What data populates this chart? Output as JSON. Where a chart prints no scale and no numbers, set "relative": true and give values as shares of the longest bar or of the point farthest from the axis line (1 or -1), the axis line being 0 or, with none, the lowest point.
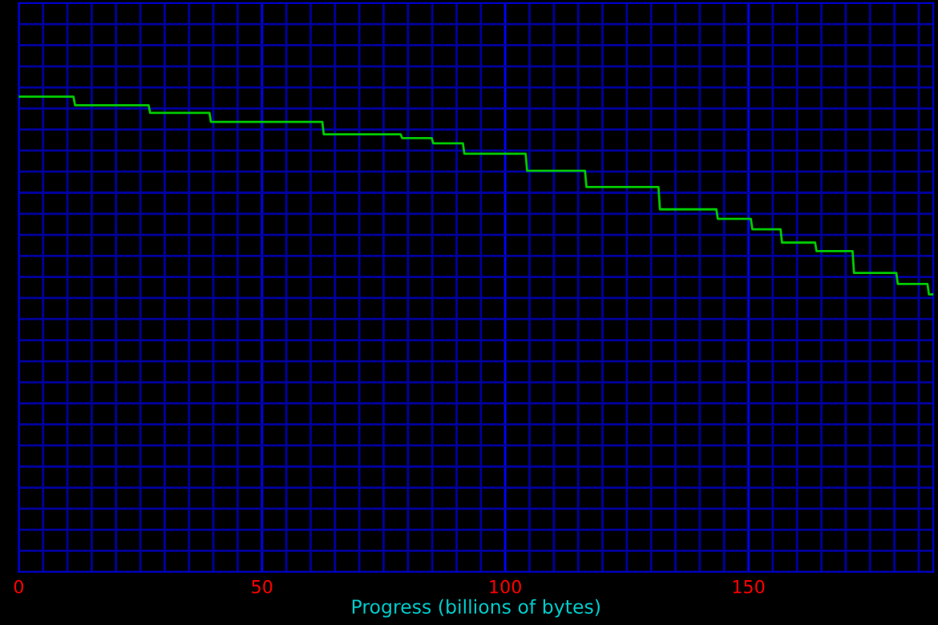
{
  "chart_data": {
    "type": "line",
    "xlabel": "Progress (billions of bytes)",
    "relative": true,
    "xlim": [
      0,
      188
    ],
    "xticks": [
      0,
      {
        "value": 5,
        "label": null
      },
      {
        "value": 10,
        "label": null
      },
      {
        "value": 15,
        "label": null
      },
      {
        "value": 20,
        "label": null
      },
      {
        "value": 25,
        "label": null
      },
      {
        "value": 30,
        "label": null
      },
      {
        "value": 35,
        "label": null
      },
      {
        "value": 40,
        "label": null
      },
      {
        "value": 45,
        "label": null
      },
      50,
      {
        "value": 55,
        "label": null
      },
      {
        "value": 60,
        "label": null
      },
      {
        "value": 65,
        "label": null
      },
      {
        "value": 70,
        "label": null
      },
      {
        "value": 75,
        "label": null
      },
      {
        "value": 80,
        "label": null
      },
      {
        "value": 85,
        "label": null
      },
      {
        "value": 90,
        "label": null
      },
      {
        "value": 95,
        "label": null
      },
      100,
      {
        "value": 105,
        "label": null
      },
      {
        "value": 110,
        "label": null
      },
      {
        "value": 115,
        "label": null
      },
      {
        "value": 120,
        "label": null
      },
      {
        "value": 125,
        "label": null
      },
      {
        "value": 130,
        "label": null
      },
      {
        "value": 135,
        "label": null
      },
      {
        "value": 140,
        "label": null
      },
      {
        "value": 145,
        "label": null
      },
      150,
      {
        "value": 155,
        "label": null
      },
      {
        "value": 160,
        "label": null
      },
      {
        "value": 165,
        "label": null
      },
      {
        "value": 170,
        "label": null
      },
      {
        "value": 175,
        "label": null
      },
      {
        "value": 180,
        "label": null
      },
      {
        "value": 185,
        "label": null
      }
    ],
    "grid": true,
    "tick_labels": "x",
    "line_style": "solid",
    "marker": "none",
    "series": [
      {
        "color": "#00cc00",
        "x": [
          0,
          11.25,
          11.58,
          26.7,
          27.0,
          39.2,
          39.5,
          62.4,
          62.7,
          78.5,
          78.8,
          84.9,
          85.2,
          91.3,
          91.6,
          104.2,
          104.5,
          116.4,
          116.7,
          131.5,
          131.8,
          143.4,
          143.7,
          150.5,
          150.8,
          156.6,
          156.9,
          163.7,
          164.0,
          171.4,
          171.7,
          180.4,
          180.7,
          186.8,
          187.1,
          188
        ],
        "values": [
          1.0,
          1.0,
          0.982,
          0.982,
          0.966,
          0.966,
          0.947,
          0.947,
          0.921,
          0.921,
          0.913,
          0.913,
          0.902,
          0.902,
          0.88,
          0.88,
          0.844,
          0.844,
          0.81,
          0.81,
          0.763,
          0.763,
          0.743,
          0.743,
          0.721,
          0.721,
          0.693,
          0.693,
          0.675,
          0.675,
          0.629,
          0.629,
          0.606,
          0.606,
          0.584,
          0.584
        ]
      }
    ]
  }
}
